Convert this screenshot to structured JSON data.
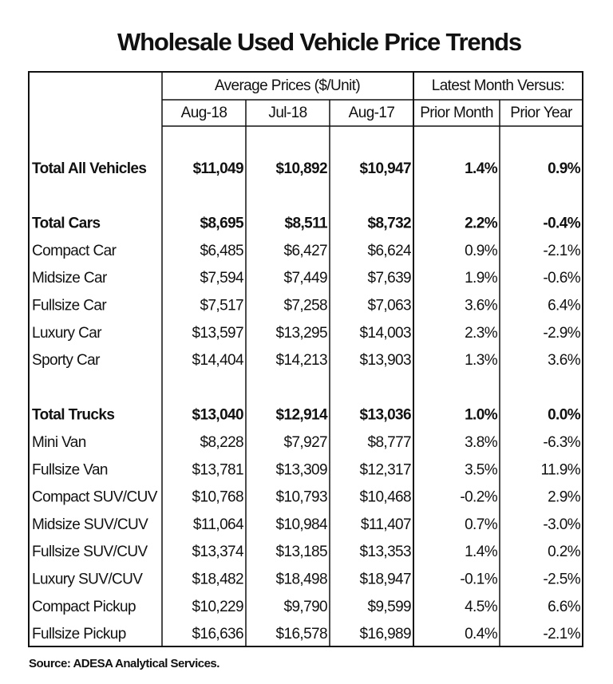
{
  "title": "Wholesale Used Vehicle Price Trends",
  "header": {
    "group1": "Average Prices ($/Unit)",
    "group2": "Latest Month Versus:",
    "columns": [
      "Aug-18",
      "Jul-18",
      "Aug-17",
      "Prior Month",
      "Prior Year"
    ]
  },
  "sections": [
    {
      "total": {
        "label": "Total All Vehicles",
        "values": [
          "$11,049",
          "$10,892",
          "$10,947",
          "1.4%",
          "0.9%"
        ]
      },
      "items": []
    },
    {
      "total": {
        "label": "Total Cars",
        "values": [
          "$8,695",
          "$8,511",
          "$8,732",
          "2.2%",
          "-0.4%"
        ]
      },
      "items": [
        {
          "label": "Compact Car",
          "values": [
            "$6,485",
            "$6,427",
            "$6,624",
            "0.9%",
            "-2.1%"
          ]
        },
        {
          "label": "Midsize Car",
          "values": [
            "$7,594",
            "$7,449",
            "$7,639",
            "1.9%",
            "-0.6%"
          ]
        },
        {
          "label": "Fullsize Car",
          "values": [
            "$7,517",
            "$7,258",
            "$7,063",
            "3.6%",
            "6.4%"
          ]
        },
        {
          "label": "Luxury Car",
          "values": [
            "$13,597",
            "$13,295",
            "$14,003",
            "2.3%",
            "-2.9%"
          ]
        },
        {
          "label": "Sporty Car",
          "values": [
            "$14,404",
            "$14,213",
            "$13,903",
            "1.3%",
            "3.6%"
          ]
        }
      ]
    },
    {
      "total": {
        "label": "Total Trucks",
        "values": [
          "$13,040",
          "$12,914",
          "$13,036",
          "1.0%",
          "0.0%"
        ]
      },
      "items": [
        {
          "label": "Mini Van",
          "values": [
            "$8,228",
            "$7,927",
            "$8,777",
            "3.8%",
            "-6.3%"
          ]
        },
        {
          "label": "Fullsize Van",
          "values": [
            "$13,781",
            "$13,309",
            "$12,317",
            "3.5%",
            "11.9%"
          ]
        },
        {
          "label": "Compact SUV/CUV",
          "values": [
            "$10,768",
            "$10,793",
            "$10,468",
            "-0.2%",
            "2.9%"
          ]
        },
        {
          "label": "Midsize SUV/CUV",
          "values": [
            "$11,064",
            "$10,984",
            "$11,407",
            "0.7%",
            "-3.0%"
          ]
        },
        {
          "label": "Fullsize SUV/CUV",
          "values": [
            "$13,374",
            "$13,185",
            "$13,353",
            "1.4%",
            "0.2%"
          ]
        },
        {
          "label": "Luxury SUV/CUV",
          "values": [
            "$18,482",
            "$18,498",
            "$18,947",
            "-0.1%",
            "-2.5%"
          ]
        },
        {
          "label": "Compact Pickup",
          "values": [
            "$10,229",
            "$9,790",
            "$9,599",
            "4.5%",
            "6.6%"
          ]
        },
        {
          "label": "Fullsize Pickup",
          "values": [
            "$16,636",
            "$16,578",
            "$16,989",
            "0.4%",
            "-2.1%"
          ]
        }
      ]
    }
  ],
  "source": "Source: ADESA Analytical Services."
}
